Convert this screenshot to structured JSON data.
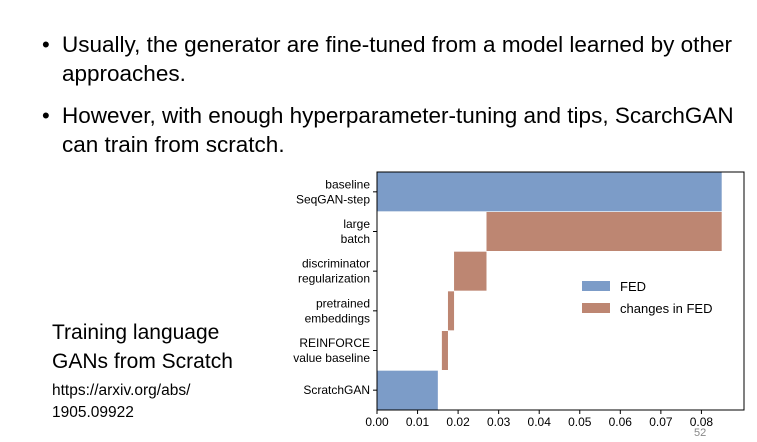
{
  "slide": {
    "bullets": [
      "Usually, the generator are fine-tuned from a model learned by other approaches.",
      "However, with enough hyperparameter-tuning and tips, ScarchGAN can train from scratch."
    ],
    "side_title_line1": "Training language",
    "side_title_line2": "GANs from Scratch",
    "link_line1": "https://arxiv.org/abs/",
    "link_line2": "1905.09922",
    "page_number": "52"
  },
  "chart_data": {
    "type": "bar",
    "orientation": "horizontal",
    "categories": [
      [
        "baseline",
        "SeqGAN-step"
      ],
      [
        "large",
        "batch"
      ],
      [
        "discriminator",
        "regularization"
      ],
      [
        "pretrained",
        "embeddings"
      ],
      [
        "REINFORCE",
        "value baseline"
      ],
      [
        "ScratchGAN"
      ]
    ],
    "bars": [
      {
        "start": 0,
        "end": 0.085,
        "series": "FED"
      },
      {
        "start": 0.027,
        "end": 0.085,
        "series": "changes in FED"
      },
      {
        "start": 0.019,
        "end": 0.027,
        "series": "changes in FED"
      },
      {
        "start": 0.0175,
        "end": 0.019,
        "series": "changes in FED"
      },
      {
        "start": 0.016,
        "end": 0.0175,
        "series": "changes in FED"
      },
      {
        "start": 0,
        "end": 0.015,
        "series": "FED"
      }
    ],
    "series": [
      {
        "name": "FED",
        "color": "#7c9cc8"
      },
      {
        "name": "changes in FED",
        "color": "#bd8672"
      }
    ],
    "xticks": [
      "0.00",
      "0.01",
      "0.02",
      "0.03",
      "0.04",
      "0.05",
      "0.06",
      "0.07",
      "0.08"
    ],
    "xlim": [
      0,
      0.0905
    ],
    "legend_position": "center-right",
    "grid": false
  }
}
